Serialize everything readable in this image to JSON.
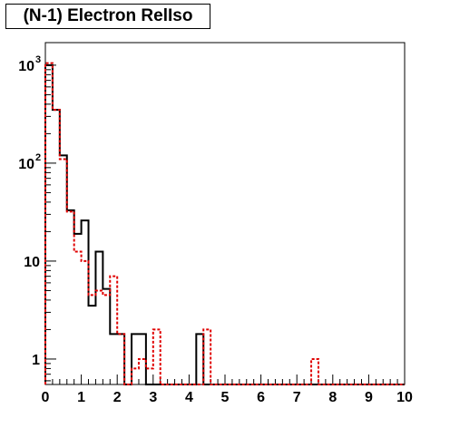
{
  "chart_data": {
    "type": "histogram",
    "title": "(N-1) Electron RelIso",
    "xlabel": "",
    "ylabel": "",
    "xlim": [
      0,
      10
    ],
    "ylim": [
      0.55,
      1700
    ],
    "yscale": "log",
    "grid": false,
    "x_tick_labels": [
      "0",
      "1",
      "2",
      "3",
      "4",
      "5",
      "6",
      "7",
      "8",
      "9",
      "10"
    ],
    "y_tick_labels": [
      {
        "value": 1,
        "label": "1"
      },
      {
        "value": 10,
        "label": "10"
      },
      {
        "value": 100,
        "label": "10",
        "exp": "2"
      },
      {
        "value": 1000,
        "label": "10",
        "exp": "3"
      }
    ],
    "bin_edges_start": 0,
    "bin_width": 0.2,
    "series": [
      {
        "color": "#000000",
        "style": "solid",
        "values": [
          1000,
          350,
          120,
          33,
          19,
          26,
          3.5,
          12.5,
          5.2,
          1.8,
          1.8,
          0,
          1.8,
          1.8,
          0,
          0,
          0,
          0,
          0,
          0,
          0,
          1.8,
          0,
          0,
          0,
          0,
          0,
          0,
          0,
          0,
          0,
          0,
          0,
          0,
          0,
          0,
          0,
          0,
          0,
          0,
          0,
          0,
          0,
          0,
          0,
          0,
          0,
          0,
          0,
          0
        ]
      },
      {
        "color": "#e00000",
        "style": "dashed",
        "values": [
          1050,
          350,
          110,
          32,
          12.5,
          10,
          4.5,
          5,
          4.5,
          7,
          1.8,
          0,
          0.8,
          1,
          0.8,
          2,
          0,
          0,
          0,
          0,
          0,
          0,
          2,
          0,
          0,
          0,
          0,
          0,
          0,
          0,
          0,
          0,
          0,
          0,
          0,
          0,
          0,
          1,
          0,
          0,
          0,
          0,
          0,
          0,
          0,
          0,
          0,
          0,
          0,
          0
        ]
      }
    ]
  }
}
